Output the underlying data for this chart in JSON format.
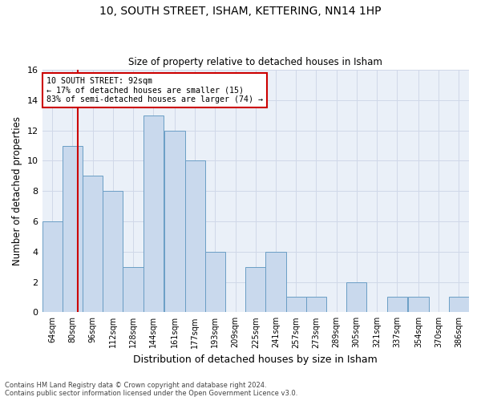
{
  "title1": "10, SOUTH STREET, ISHAM, KETTERING, NN14 1HP",
  "title2": "Size of property relative to detached houses in Isham",
  "xlabel": "Distribution of detached houses by size in Isham",
  "ylabel": "Number of detached properties",
  "bin_labels": [
    "64sqm",
    "80sqm",
    "96sqm",
    "112sqm",
    "128sqm",
    "144sqm",
    "161sqm",
    "177sqm",
    "193sqm",
    "209sqm",
    "225sqm",
    "241sqm",
    "257sqm",
    "273sqm",
    "289sqm",
    "305sqm",
    "321sqm",
    "337sqm",
    "354sqm",
    "370sqm",
    "386sqm"
  ],
  "bin_edges": [
    64,
    80,
    96,
    112,
    128,
    144,
    161,
    177,
    193,
    209,
    225,
    241,
    257,
    273,
    289,
    305,
    321,
    337,
    354,
    370,
    386
  ],
  "bar_heights": [
    6,
    11,
    9,
    8,
    3,
    13,
    12,
    10,
    4,
    0,
    3,
    4,
    1,
    1,
    0,
    2,
    0,
    1,
    1,
    0,
    1
  ],
  "bar_color": "#c9d9ed",
  "bar_edge_color": "#6a9ec5",
  "ylim": [
    0,
    16
  ],
  "yticks": [
    0,
    2,
    4,
    6,
    8,
    10,
    12,
    14,
    16
  ],
  "vline_x": 92,
  "vline_color": "#cc0000",
  "annotation_line1": "10 SOUTH STREET: 92sqm",
  "annotation_line2": "← 17% of detached houses are smaller (15)",
  "annotation_line3": "83% of semi-detached houses are larger (74) →",
  "annotation_box_color": "#ffffff",
  "annotation_box_edge": "#cc0000",
  "footnote1": "Contains HM Land Registry data © Crown copyright and database right 2024.",
  "footnote2": "Contains public sector information licensed under the Open Government Licence v3.0.",
  "grid_color": "#d0d8e8",
  "background_color": "#eaf0f8"
}
